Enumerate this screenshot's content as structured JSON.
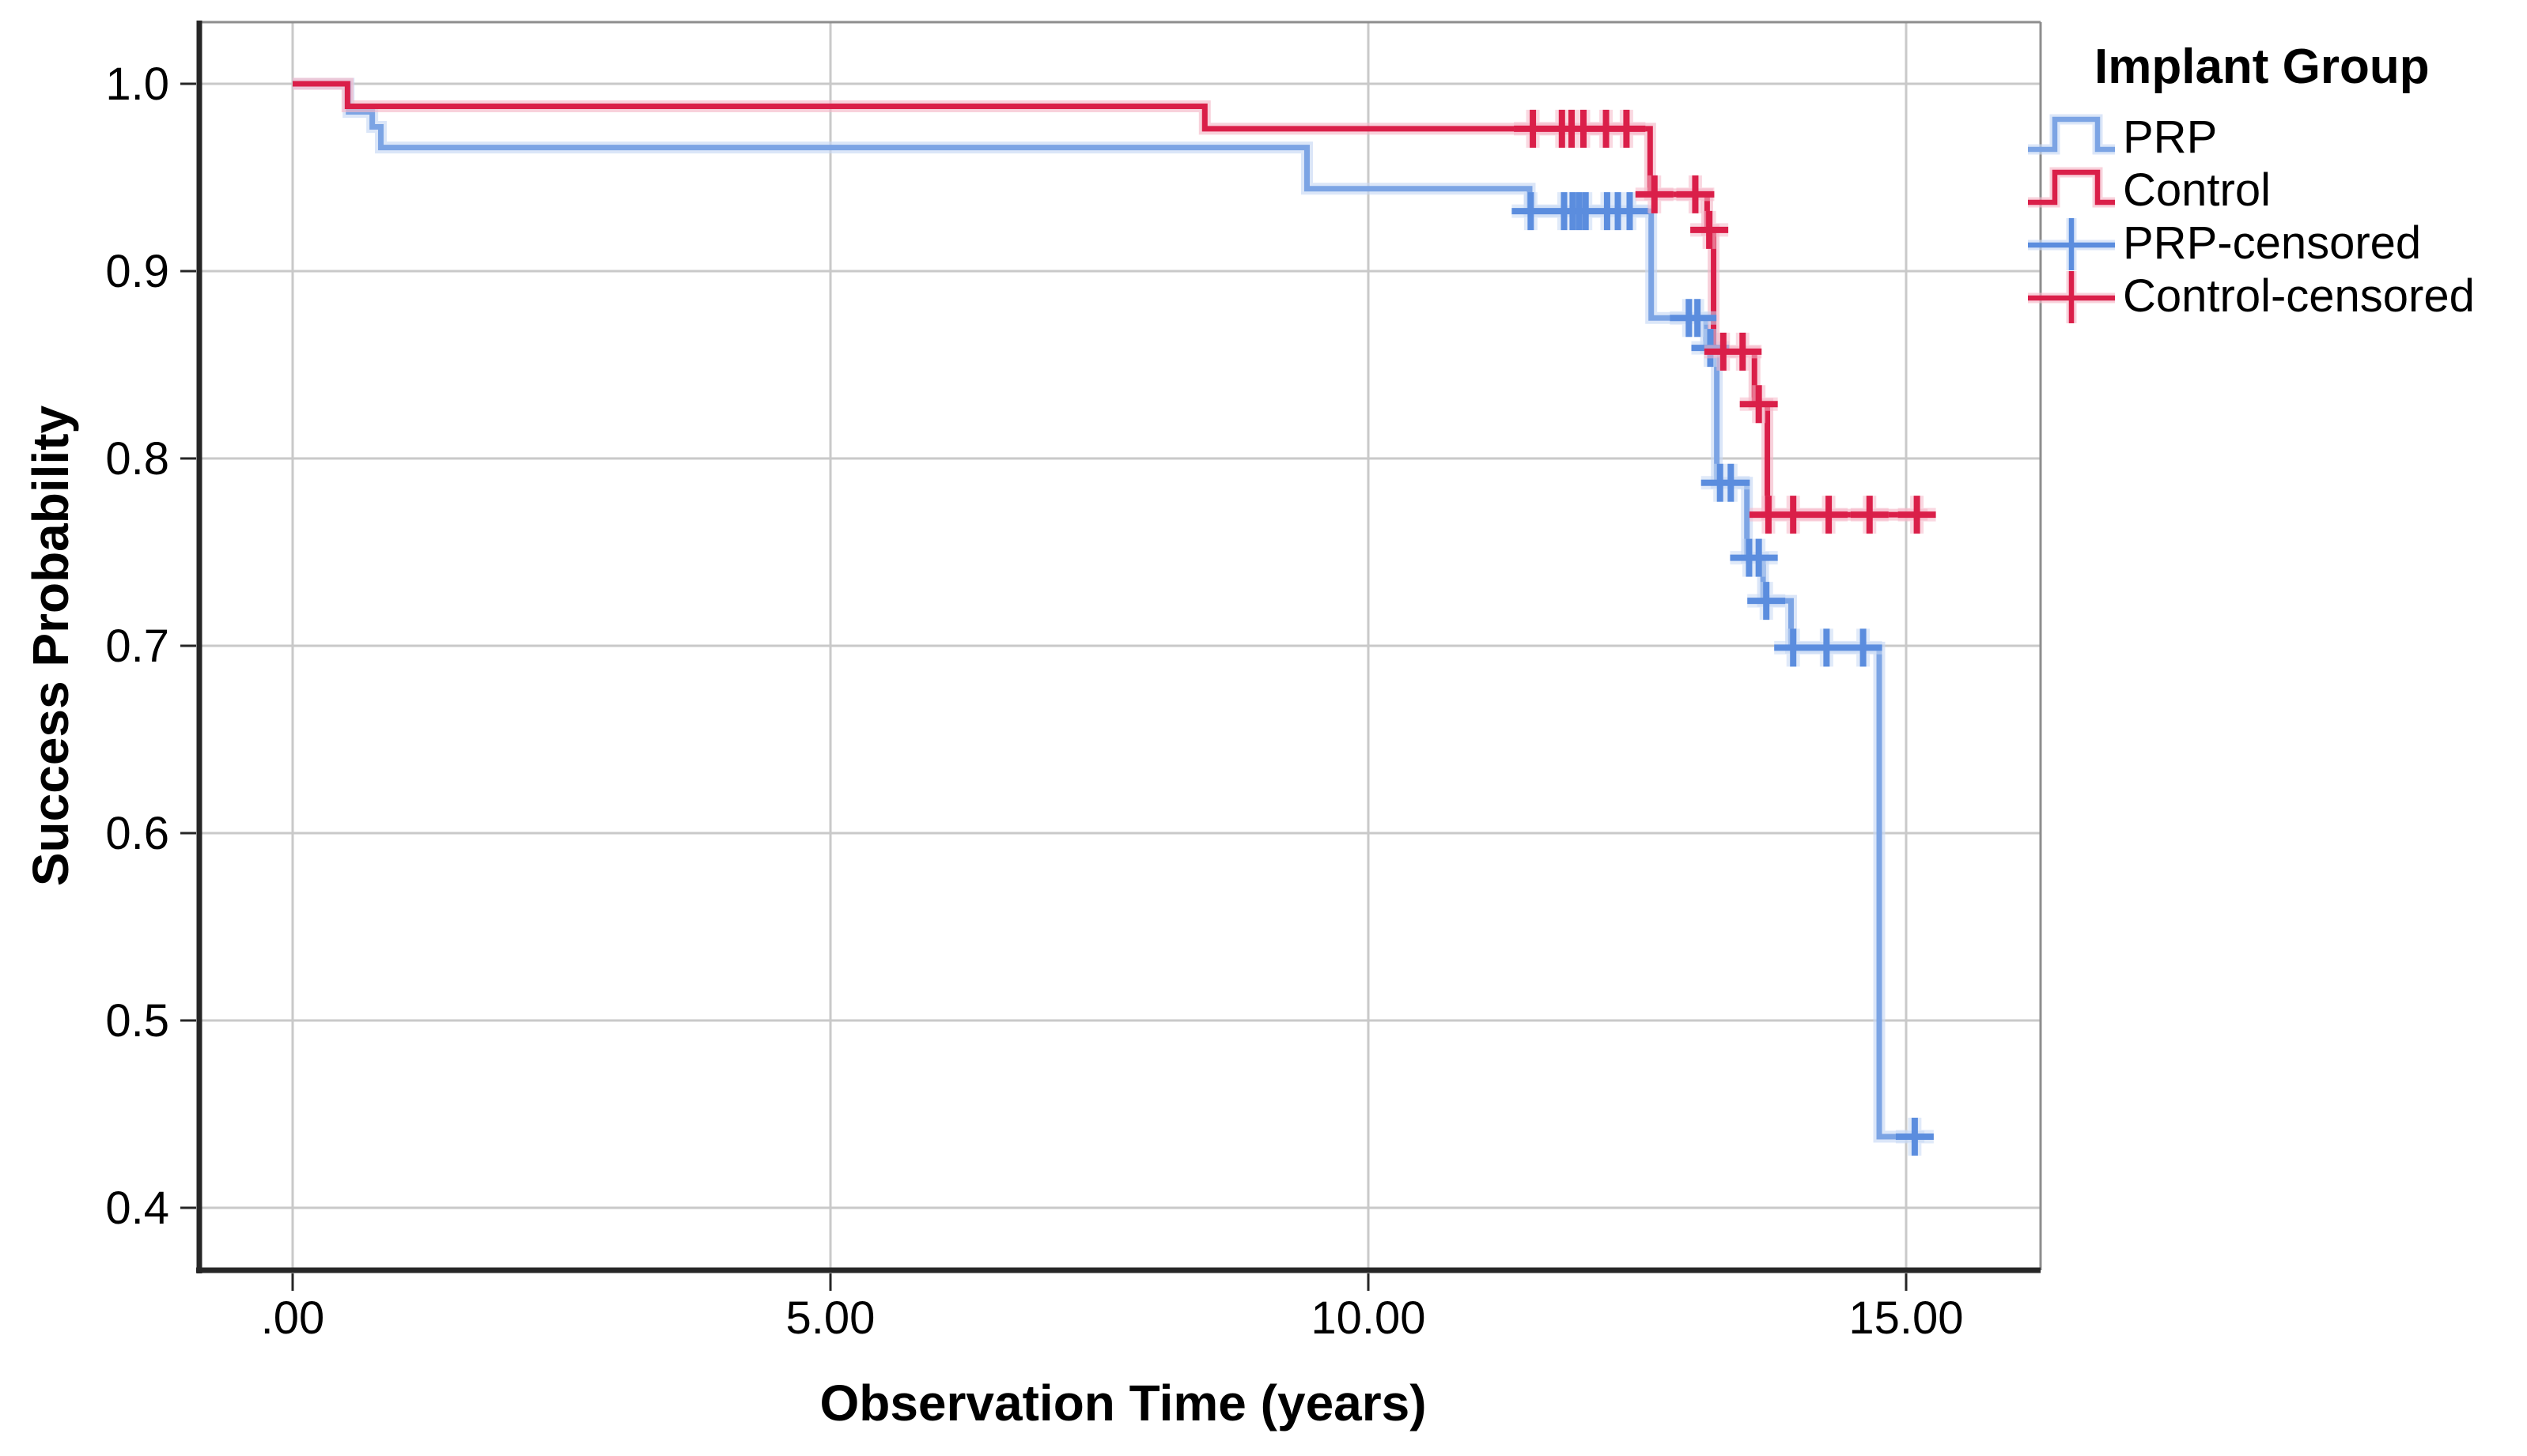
{
  "chart_data": {
    "type": "line",
    "subtype": "kaplan-meier-step-survival",
    "title": "",
    "xlabel": "Observation Time (years)",
    "ylabel": "Success Probability",
    "xlim": [
      -0.87,
      16.25
    ],
    "ylim": [
      0.367,
      1.033
    ],
    "grid": true,
    "grid_color": "#c9c9c9",
    "axis_color": "#262626",
    "frame_color": "#8e8e8e",
    "xticks": [
      {
        "value": 0,
        "label": ".00"
      },
      {
        "value": 5,
        "label": "5.00"
      },
      {
        "value": 10,
        "label": "10.00"
      },
      {
        "value": 15,
        "label": "15.00"
      }
    ],
    "yticks": [
      {
        "value": 1.0,
        "label": "1.0"
      },
      {
        "value": 0.9,
        "label": "0.9"
      },
      {
        "value": 0.8,
        "label": "0.8"
      },
      {
        "value": 0.7,
        "label": "0.7"
      },
      {
        "value": 0.6,
        "label": "0.6"
      },
      {
        "value": 0.5,
        "label": "0.5"
      },
      {
        "value": 0.4,
        "label": "0.4"
      }
    ],
    "legend": {
      "title": "Implant Group",
      "position": "top-right",
      "items": [
        {
          "label": "PRP",
          "marker": "step",
          "color": "#7ca4e4"
        },
        {
          "label": "Control",
          "marker": "step",
          "color": "#da1f49"
        },
        {
          "label": "PRP-censored",
          "marker": "plus",
          "color": "#5b8dde"
        },
        {
          "label": "Control-censored",
          "marker": "plus",
          "color": "#da1f49"
        }
      ]
    },
    "series": [
      {
        "name": "PRP",
        "color": "#7ca4e4",
        "halo_color": "#c7d9f4",
        "marker_color": "#5b8dde",
        "steps": [
          [
            0,
            1.0
          ],
          [
            0.52,
            0.985
          ],
          [
            0.74,
            0.977
          ],
          [
            0.82,
            0.966
          ],
          [
            9.43,
            0.944
          ],
          [
            11.5,
            0.932
          ],
          [
            12.63,
            0.875
          ],
          [
            13.14,
            0.859
          ],
          [
            13.24,
            0.787
          ],
          [
            13.52,
            0.747
          ],
          [
            13.67,
            0.724
          ],
          [
            13.93,
            0.699
          ],
          [
            14.75,
            0.438
          ]
        ],
        "end_time": 15.17,
        "censored": [
          [
            11.51,
            0.932
          ],
          [
            11.82,
            0.932
          ],
          [
            11.9,
            0.932
          ],
          [
            11.96,
            0.932
          ],
          [
            12.02,
            0.932
          ],
          [
            12.22,
            0.932
          ],
          [
            12.32,
            0.932
          ],
          [
            12.43,
            0.932
          ],
          [
            12.98,
            0.875
          ],
          [
            13.06,
            0.875
          ],
          [
            13.18,
            0.859
          ],
          [
            13.27,
            0.787
          ],
          [
            13.37,
            0.787
          ],
          [
            13.54,
            0.747
          ],
          [
            13.63,
            0.747
          ],
          [
            13.7,
            0.724
          ],
          [
            13.95,
            0.699
          ],
          [
            14.26,
            0.699
          ],
          [
            14.6,
            0.699
          ],
          [
            15.08,
            0.438
          ]
        ]
      },
      {
        "name": "Control",
        "color": "#da1f49",
        "halo_color": "#f5b8c8",
        "marker_color": "#da1f49",
        "steps": [
          [
            0,
            1.0
          ],
          [
            0.51,
            0.988
          ],
          [
            8.48,
            0.976
          ],
          [
            12.62,
            0.941
          ],
          [
            13.15,
            0.922
          ],
          [
            13.21,
            0.857
          ],
          [
            13.59,
            0.829
          ],
          [
            13.71,
            0.77
          ]
        ],
        "end_time": 15.2,
        "censored": [
          [
            11.53,
            0.976
          ],
          [
            11.8,
            0.976
          ],
          [
            11.89,
            0.976
          ],
          [
            12.0,
            0.976
          ],
          [
            12.21,
            0.976
          ],
          [
            12.4,
            0.976
          ],
          [
            12.66,
            0.941
          ],
          [
            13.04,
            0.941
          ],
          [
            13.17,
            0.922
          ],
          [
            13.3,
            0.857
          ],
          [
            13.48,
            0.857
          ],
          [
            13.63,
            0.829
          ],
          [
            13.72,
            0.77
          ],
          [
            13.95,
            0.77
          ],
          [
            14.28,
            0.77
          ],
          [
            14.66,
            0.77
          ],
          [
            15.1,
            0.77
          ]
        ]
      }
    ]
  }
}
